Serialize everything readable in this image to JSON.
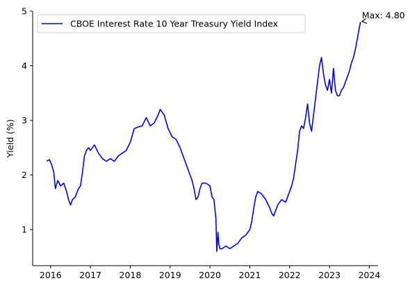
{
  "chart_data": {
    "type": "line",
    "title": "",
    "xlabel": "",
    "ylabel": "Yield (%)",
    "xlim": [
      2015.55,
      2024.22
    ],
    "ylim": [
      0.34,
      5.0
    ],
    "grid": false,
    "legend_placement": "top-left",
    "x_ticks": [
      {
        "value": 2016,
        "label": "2016"
      },
      {
        "value": 2017,
        "label": "2017"
      },
      {
        "value": 2018,
        "label": "2018"
      },
      {
        "value": 2019,
        "label": "2019"
      },
      {
        "value": 2020,
        "label": "2020"
      },
      {
        "value": 2021,
        "label": "2021"
      },
      {
        "value": 2022,
        "label": "2022"
      },
      {
        "value": 2023,
        "label": "2023"
      },
      {
        "value": 2024,
        "label": "2024"
      }
    ],
    "y_ticks": [
      {
        "value": 1,
        "label": "1"
      },
      {
        "value": 2,
        "label": "2"
      },
      {
        "value": 3,
        "label": "3"
      },
      {
        "value": 4,
        "label": "4"
      },
      {
        "value": 5,
        "label": "5"
      }
    ],
    "series": [
      {
        "name": "CBOE Interest Rate 10 Year Treasury Yield Index",
        "color": "#0000ff",
        "x": [
          2015.9,
          2015.97,
          2016.02,
          2016.08,
          2016.12,
          2016.18,
          2016.25,
          2016.33,
          2016.4,
          2016.45,
          2016.5,
          2016.55,
          2016.62,
          2016.7,
          2016.75,
          2016.8,
          2016.85,
          2016.9,
          2016.95,
          2017.0,
          2017.1,
          2017.2,
          2017.3,
          2017.4,
          2017.5,
          2017.6,
          2017.7,
          2017.8,
          2017.9,
          2018.0,
          2018.1,
          2018.2,
          2018.3,
          2018.4,
          2018.5,
          2018.6,
          2018.7,
          2018.75,
          2018.8,
          2018.85,
          2018.95,
          2019.05,
          2019.15,
          2019.25,
          2019.35,
          2019.45,
          2019.55,
          2019.6,
          2019.65,
          2019.7,
          2019.75,
          2019.8,
          2019.9,
          2020.0,
          2020.05,
          2020.1,
          2020.15,
          2020.17,
          2020.2,
          2020.22,
          2020.25,
          2020.3,
          2020.4,
          2020.5,
          2020.6,
          2020.7,
          2020.8,
          2020.9,
          2021.0,
          2021.05,
          2021.1,
          2021.15,
          2021.2,
          2021.3,
          2021.4,
          2021.5,
          2021.55,
          2021.6,
          2021.65,
          2021.7,
          2021.8,
          2021.9,
          2022.0,
          2022.05,
          2022.1,
          2022.15,
          2022.2,
          2022.25,
          2022.3,
          2022.35,
          2022.4,
          2022.45,
          2022.5,
          2022.55,
          2022.6,
          2022.65,
          2022.7,
          2022.75,
          2022.8,
          2022.85,
          2022.9,
          2022.95,
          2023.0,
          2023.05,
          2023.1,
          2023.15,
          2023.2,
          2023.25,
          2023.3,
          2023.35,
          2023.4,
          2023.45,
          2023.5,
          2023.55,
          2023.6,
          2023.65,
          2023.7,
          2023.75,
          2023.78
        ],
        "y": [
          2.25,
          2.28,
          2.2,
          2.05,
          1.75,
          1.9,
          1.8,
          1.85,
          1.7,
          1.55,
          1.45,
          1.55,
          1.6,
          1.75,
          1.8,
          2.05,
          2.35,
          2.45,
          2.5,
          2.45,
          2.55,
          2.4,
          2.3,
          2.25,
          2.3,
          2.25,
          2.35,
          2.4,
          2.45,
          2.6,
          2.85,
          2.88,
          2.9,
          3.05,
          2.9,
          2.95,
          3.1,
          3.2,
          3.15,
          3.1,
          2.85,
          2.7,
          2.65,
          2.5,
          2.3,
          2.1,
          1.9,
          1.75,
          1.55,
          1.6,
          1.75,
          1.85,
          1.85,
          1.8,
          1.6,
          1.55,
          1.2,
          0.6,
          0.95,
          0.75,
          0.65,
          0.65,
          0.7,
          0.65,
          0.7,
          0.75,
          0.85,
          0.9,
          1.0,
          1.15,
          1.4,
          1.6,
          1.7,
          1.65,
          1.55,
          1.4,
          1.3,
          1.25,
          1.35,
          1.45,
          1.55,
          1.5,
          1.7,
          1.8,
          1.95,
          2.2,
          2.45,
          2.8,
          2.9,
          2.85,
          3.05,
          3.3,
          2.95,
          2.8,
          3.1,
          3.4,
          3.7,
          4.0,
          4.15,
          3.85,
          3.65,
          3.55,
          3.75,
          3.5,
          3.95,
          3.55,
          3.45,
          3.45,
          3.55,
          3.6,
          3.7,
          3.8,
          3.9,
          4.05,
          4.15,
          4.3,
          4.5,
          4.7,
          4.8
        ]
      }
    ],
    "annotations": [
      {
        "text": "Max: 4.80",
        "x": 2023.78,
        "y": 4.8
      }
    ]
  }
}
